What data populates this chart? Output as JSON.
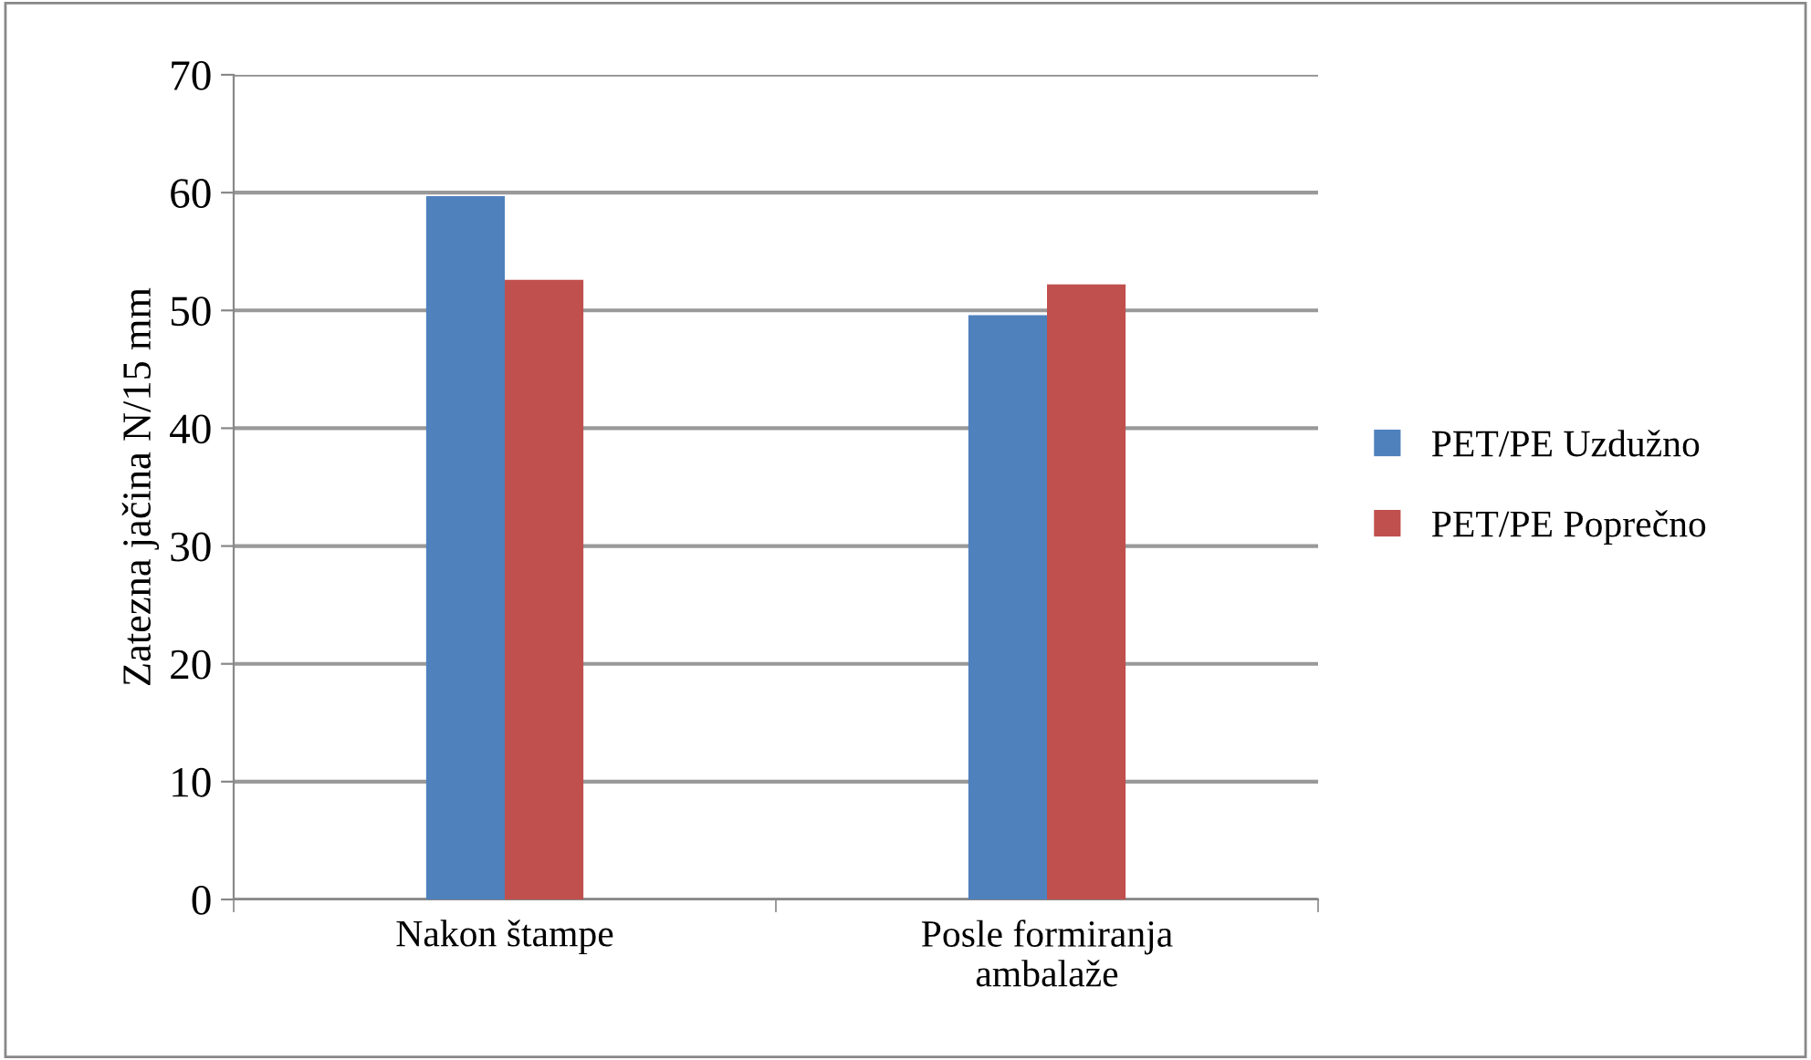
{
  "chart_data": {
    "type": "bar",
    "ylabel": "Zatezna jačina N/15 mm",
    "categories": [
      "Nakon štampe",
      "Posle formiranja\nambalaže"
    ],
    "series": [
      {
        "name": "PET/PE Uzdužno",
        "color": "#4f81bd",
        "values": [
          59.7,
          49.6
        ]
      },
      {
        "name": "PET/PE Poprečno",
        "color": "#c0504d",
        "values": [
          52.6,
          52.2
        ]
      }
    ],
    "ylim": [
      0,
      70
    ],
    "yticks": [
      0,
      10,
      20,
      30,
      40,
      50,
      60,
      70
    ],
    "grid": "y",
    "legend": "right"
  }
}
